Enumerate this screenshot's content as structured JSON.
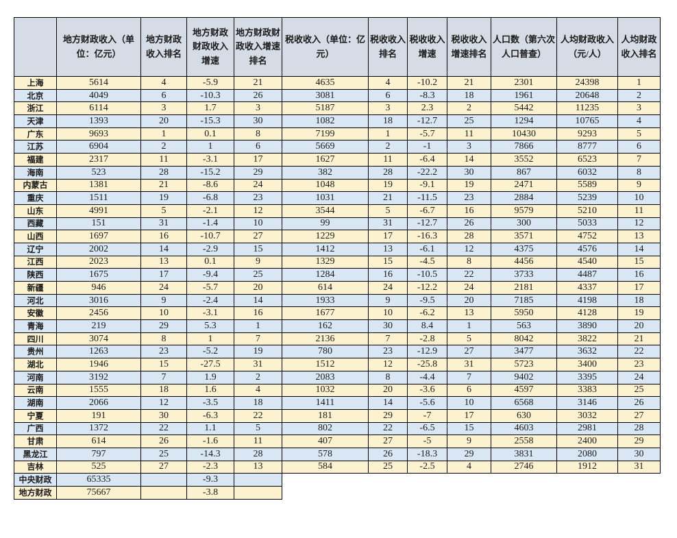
{
  "colors": {
    "header_bg": "#d6dce5",
    "row_yellow": "#fdf2d0",
    "row_blue": "#d9e7f5",
    "border": "#000000"
  },
  "table": {
    "header": {
      "corner": "",
      "columns": [
        "地方财政收入（单位：亿元）",
        "地方财政收入排名",
        "地方财政财政收入增速",
        "地方财政财政收入增速排名",
        "税收收入（单位：亿元）",
        "税收收入排名",
        "税收收入增速",
        "税收收入增速排名",
        "人口数（第六次人口普查）",
        "人均财政收入（元/人）",
        "人均财政收入排名"
      ]
    },
    "provinces": [
      {
        "name": "上海",
        "values": [
          "5614",
          "4",
          "-5.9",
          "21",
          "4635",
          "4",
          "-10.2",
          "21",
          "2301",
          "24398",
          "1"
        ]
      },
      {
        "name": "北京",
        "values": [
          "4049",
          "6",
          "-10.3",
          "26",
          "3081",
          "6",
          "-8.3",
          "18",
          "1961",
          "20648",
          "2"
        ]
      },
      {
        "name": "浙江",
        "values": [
          "6114",
          "3",
          "1.7",
          "3",
          "5187",
          "3",
          "2.3",
          "2",
          "5442",
          "11235",
          "3"
        ]
      },
      {
        "name": "天津",
        "values": [
          "1393",
          "20",
          "-15.3",
          "30",
          "1082",
          "18",
          "-12.7",
          "25",
          "1294",
          "10765",
          "4"
        ]
      },
      {
        "name": "广东",
        "values": [
          "9693",
          "1",
          "0.1",
          "8",
          "7199",
          "1",
          "-5.7",
          "11",
          "10430",
          "9293",
          "5"
        ]
      },
      {
        "name": "江苏",
        "values": [
          "6904",
          "2",
          "1",
          "6",
          "5669",
          "2",
          "-1",
          "3",
          "7866",
          "8777",
          "6"
        ]
      },
      {
        "name": "福建",
        "values": [
          "2317",
          "11",
          "-3.1",
          "17",
          "1627",
          "11",
          "-6.4",
          "14",
          "3552",
          "6523",
          "7"
        ]
      },
      {
        "name": "海南",
        "values": [
          "523",
          "28",
          "-15.2",
          "29",
          "382",
          "28",
          "-22.2",
          "30",
          "867",
          "6032",
          "8"
        ]
      },
      {
        "name": "内蒙古",
        "values": [
          "1381",
          "21",
          "-8.6",
          "24",
          "1048",
          "19",
          "-9.1",
          "19",
          "2471",
          "5589",
          "9"
        ]
      },
      {
        "name": "重庆",
        "values": [
          "1511",
          "19",
          "-6.8",
          "23",
          "1031",
          "21",
          "-11.5",
          "23",
          "2884",
          "5239",
          "10"
        ]
      },
      {
        "name": "山东",
        "values": [
          "4991",
          "5",
          "-2.1",
          "12",
          "3544",
          "5",
          "-6.7",
          "16",
          "9579",
          "5210",
          "11"
        ]
      },
      {
        "name": "西藏",
        "values": [
          "151",
          "31",
          "-1.4",
          "10",
          "99",
          "31",
          "-12.7",
          "26",
          "300",
          "5033",
          "12"
        ]
      },
      {
        "name": "山西",
        "values": [
          "1697",
          "16",
          "-10.7",
          "27",
          "1229",
          "17",
          "-16.3",
          "28",
          "3571",
          "4752",
          "13"
        ]
      },
      {
        "name": "辽宁",
        "values": [
          "2002",
          "14",
          "-2.9",
          "15",
          "1412",
          "13",
          "-6.1",
          "12",
          "4375",
          "4576",
          "14"
        ]
      },
      {
        "name": "江西",
        "values": [
          "2023",
          "13",
          "0.1",
          "9",
          "1329",
          "15",
          "-4.5",
          "8",
          "4456",
          "4540",
          "15"
        ]
      },
      {
        "name": "陕西",
        "values": [
          "1675",
          "17",
          "-9.4",
          "25",
          "1284",
          "16",
          "-10.5",
          "22",
          "3733",
          "4487",
          "16"
        ]
      },
      {
        "name": "新疆",
        "values": [
          "946",
          "24",
          "-5.7",
          "20",
          "614",
          "24",
          "-12.2",
          "24",
          "2181",
          "4337",
          "17"
        ]
      },
      {
        "name": "河北",
        "values": [
          "3016",
          "9",
          "-2.4",
          "14",
          "1933",
          "9",
          "-9.5",
          "20",
          "7185",
          "4198",
          "18"
        ]
      },
      {
        "name": "安徽",
        "values": [
          "2456",
          "10",
          "-3.1",
          "16",
          "1677",
          "10",
          "-6.2",
          "13",
          "5950",
          "4128",
          "19"
        ]
      },
      {
        "name": "青海",
        "values": [
          "219",
          "29",
          "5.3",
          "1",
          "162",
          "30",
          "8.4",
          "1",
          "563",
          "3890",
          "20"
        ]
      },
      {
        "name": "四川",
        "values": [
          "3074",
          "8",
          "1",
          "7",
          "2136",
          "7",
          "-2.8",
          "5",
          "8042",
          "3822",
          "21"
        ]
      },
      {
        "name": "贵州",
        "values": [
          "1263",
          "23",
          "-5.2",
          "19",
          "780",
          "23",
          "-12.9",
          "27",
          "3477",
          "3632",
          "22"
        ]
      },
      {
        "name": "湖北",
        "values": [
          "1946",
          "15",
          "-27.5",
          "31",
          "1512",
          "12",
          "-25.8",
          "31",
          "5723",
          "3400",
          "23"
        ]
      },
      {
        "name": "河南",
        "values": [
          "3192",
          "7",
          "1.9",
          "2",
          "2083",
          "8",
          "-4.4",
          "7",
          "9402",
          "3395",
          "24"
        ]
      },
      {
        "name": "云南",
        "values": [
          "1555",
          "18",
          "1.6",
          "4",
          "1032",
          "20",
          "-3.6",
          "6",
          "4597",
          "3383",
          "25"
        ]
      },
      {
        "name": "湖南",
        "values": [
          "2066",
          "12",
          "-3.5",
          "18",
          "1411",
          "14",
          "-5.6",
          "10",
          "6568",
          "3146",
          "26"
        ]
      },
      {
        "name": "宁夏",
        "values": [
          "191",
          "30",
          "-6.3",
          "22",
          "181",
          "29",
          "-7",
          "17",
          "630",
          "3032",
          "27"
        ]
      },
      {
        "name": "广西",
        "values": [
          "1372",
          "22",
          "1.1",
          "5",
          "802",
          "22",
          "-6.5",
          "15",
          "4603",
          "2981",
          "28"
        ]
      },
      {
        "name": "甘肃",
        "values": [
          "614",
          "26",
          "-1.6",
          "11",
          "407",
          "27",
          "-5",
          "9",
          "2558",
          "2400",
          "29"
        ]
      },
      {
        "name": "黑龙江",
        "values": [
          "797",
          "25",
          "-14.3",
          "28",
          "578",
          "26",
          "-18.3",
          "29",
          "3831",
          "2080",
          "30"
        ]
      },
      {
        "name": "吉林",
        "values": [
          "525",
          "27",
          "-2.3",
          "13",
          "584",
          "25",
          "-2.5",
          "4",
          "2746",
          "1912",
          "31"
        ]
      }
    ],
    "summary": [
      {
        "name": "中央财政",
        "values": [
          "65335",
          "",
          "-9.3",
          ""
        ]
      },
      {
        "name": "地方财政",
        "values": [
          "75667",
          "",
          "-3.8",
          ""
        ]
      }
    ]
  }
}
